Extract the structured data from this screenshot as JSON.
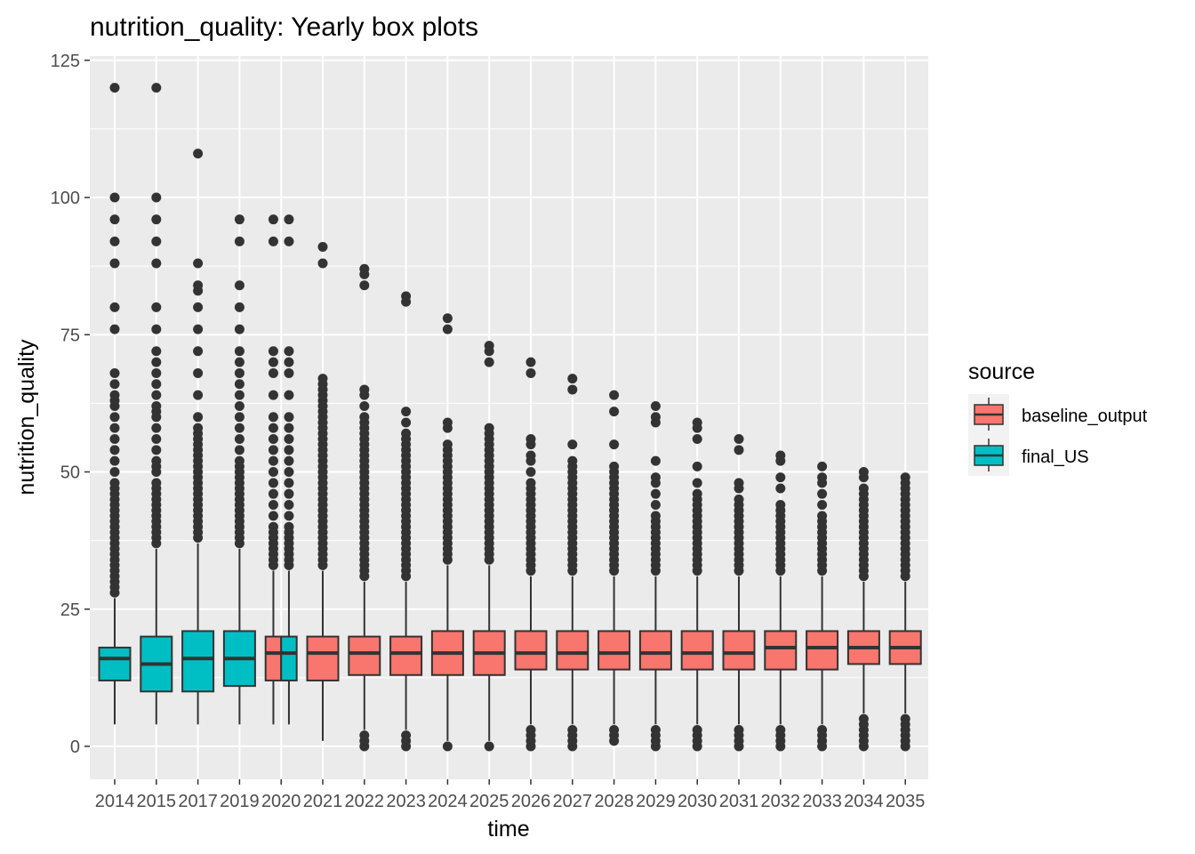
{
  "chart_data": {
    "type": "box",
    "title": "nutrition_quality: Yearly box plots",
    "xlabel": "time",
    "ylabel": "nutrition_quality",
    "ylim": [
      -5.5,
      127
    ],
    "yticks": [
      0,
      25,
      50,
      75,
      100,
      125
    ],
    "grid": true,
    "legend": {
      "title": "source",
      "position": "right",
      "entries": [
        {
          "name": "baseline_output",
          "color": "#F8766D"
        },
        {
          "name": "final_US",
          "color": "#00BFC4"
        }
      ]
    },
    "colors": {
      "baseline_output": "#F8766D",
      "final_US": "#00BFC4",
      "panel": "#EBEBEB",
      "grid": "#FFFFFF",
      "ink": "#333333"
    },
    "categories": [
      "2014",
      "2015",
      "2017",
      "2019",
      "2020",
      "2021",
      "2022",
      "2023",
      "2024",
      "2025",
      "2026",
      "2027",
      "2028",
      "2029",
      "2030",
      "2031",
      "2032",
      "2033",
      "2034",
      "2035"
    ],
    "boxes": [
      {
        "x": "2014",
        "source": "final_US",
        "whisker_low": 4,
        "q1": 12,
        "median": 16,
        "q3": 18,
        "whisker_high": 27,
        "outliers": [
          28,
          29,
          30,
          31,
          32,
          33,
          34,
          35,
          36,
          37,
          38,
          39,
          40,
          41,
          42,
          43,
          44,
          45,
          46,
          47,
          48,
          50,
          52,
          54,
          56,
          58,
          60,
          62,
          63,
          64,
          66,
          68,
          76,
          80,
          88,
          92,
          96,
          100,
          120
        ]
      },
      {
        "x": "2015",
        "source": "final_US",
        "whisker_low": 4,
        "q1": 10,
        "median": 15,
        "q3": 20,
        "whisker_high": 36,
        "outliers": [
          37,
          38,
          39,
          40,
          41,
          42,
          43,
          44,
          45,
          46,
          47,
          48,
          50,
          51,
          52,
          54,
          56,
          58,
          60,
          61,
          62,
          64,
          66,
          68,
          70,
          72,
          76,
          80,
          88,
          92,
          96,
          100,
          120
        ]
      },
      {
        "x": "2017",
        "source": "final_US",
        "whisker_low": 4,
        "q1": 10,
        "median": 16,
        "q3": 21,
        "whisker_high": 37,
        "outliers": [
          38,
          39,
          40,
          41,
          42,
          43,
          44,
          45,
          46,
          47,
          48,
          49,
          50,
          51,
          52,
          53,
          54,
          55,
          56,
          57,
          58,
          60,
          64,
          68,
          72,
          76,
          80,
          83,
          84,
          88,
          108
        ]
      },
      {
        "x": "2019",
        "source": "final_US",
        "whisker_low": 4,
        "q1": 11,
        "median": 16,
        "q3": 21,
        "whisker_high": 36,
        "outliers": [
          37,
          38,
          39,
          40,
          41,
          42,
          43,
          44,
          45,
          46,
          47,
          48,
          49,
          50,
          51,
          52,
          54,
          56,
          58,
          60,
          62,
          64,
          66,
          68,
          70,
          72,
          76,
          80,
          84,
          92,
          96
        ]
      },
      {
        "x": "2020",
        "source": "baseline_output",
        "whisker_low": 4,
        "q1": 12,
        "median": 17,
        "q3": 20,
        "whisker_high": 32,
        "outliers": [
          33,
          34,
          35,
          36,
          37,
          38,
          39,
          40,
          42,
          44,
          46,
          48,
          50,
          52,
          54,
          56,
          58,
          60,
          64,
          68,
          70,
          72,
          92,
          96
        ]
      },
      {
        "x": "2020",
        "source": "final_US",
        "whisker_low": 4,
        "q1": 12,
        "median": 17,
        "q3": 20,
        "whisker_high": 32,
        "outliers": [
          33,
          34,
          35,
          36,
          37,
          38,
          39,
          40,
          42,
          44,
          46,
          48,
          50,
          52,
          54,
          56,
          58,
          60,
          64,
          68,
          70,
          72,
          92,
          96
        ]
      },
      {
        "x": "2021",
        "source": "baseline_output",
        "whisker_low": 1,
        "q1": 12,
        "median": 17,
        "q3": 20,
        "whisker_high": 32,
        "outliers": [
          33,
          34,
          35,
          36,
          37,
          38,
          39,
          40,
          41,
          42,
          43,
          44,
          45,
          46,
          47,
          48,
          49,
          50,
          51,
          52,
          53,
          54,
          55,
          56,
          57,
          58,
          59,
          60,
          61,
          62,
          63,
          64,
          65,
          66,
          67,
          88,
          91
        ]
      },
      {
        "x": "2022",
        "source": "baseline_output",
        "whisker_low": 3,
        "q1": 13,
        "median": 17,
        "q3": 20,
        "whisker_high": 30,
        "outliers": [
          0,
          1,
          2,
          31,
          32,
          33,
          34,
          35,
          36,
          37,
          38,
          39,
          40,
          41,
          42,
          43,
          44,
          45,
          46,
          47,
          48,
          49,
          50,
          51,
          52,
          53,
          54,
          55,
          56,
          57,
          58,
          59,
          60,
          62,
          64,
          65,
          84,
          86,
          87
        ]
      },
      {
        "x": "2023",
        "source": "baseline_output",
        "whisker_low": 3,
        "q1": 13,
        "median": 17,
        "q3": 20,
        "whisker_high": 30,
        "outliers": [
          0,
          1,
          2,
          31,
          32,
          33,
          34,
          35,
          36,
          37,
          38,
          39,
          40,
          41,
          42,
          43,
          44,
          45,
          46,
          47,
          48,
          49,
          50,
          51,
          52,
          53,
          54,
          55,
          56,
          57,
          59,
          61,
          81,
          82
        ]
      },
      {
        "x": "2024",
        "source": "baseline_output",
        "whisker_low": 1,
        "q1": 13,
        "median": 17,
        "q3": 21,
        "whisker_high": 33,
        "outliers": [
          0,
          34,
          35,
          36,
          37,
          38,
          39,
          40,
          41,
          42,
          43,
          44,
          45,
          46,
          47,
          48,
          49,
          50,
          51,
          52,
          53,
          54,
          55,
          58,
          59,
          76,
          78
        ]
      },
      {
        "x": "2025",
        "source": "baseline_output",
        "whisker_low": 1,
        "q1": 13,
        "median": 17,
        "q3": 21,
        "whisker_high": 33,
        "outliers": [
          0,
          34,
          35,
          36,
          37,
          38,
          39,
          40,
          41,
          42,
          43,
          44,
          45,
          46,
          47,
          48,
          49,
          50,
          51,
          52,
          53,
          54,
          55,
          56,
          57,
          58,
          70,
          72,
          73
        ]
      },
      {
        "x": "2026",
        "source": "baseline_output",
        "whisker_low": 4,
        "q1": 14,
        "median": 17,
        "q3": 21,
        "whisker_high": 31,
        "outliers": [
          0,
          1,
          2,
          3,
          32,
          33,
          34,
          35,
          36,
          37,
          38,
          39,
          40,
          41,
          42,
          43,
          44,
          45,
          46,
          47,
          48,
          50,
          52,
          53,
          55,
          56,
          68,
          70
        ]
      },
      {
        "x": "2027",
        "source": "baseline_output",
        "whisker_low": 4,
        "q1": 14,
        "median": 17,
        "q3": 21,
        "whisker_high": 31,
        "outliers": [
          0,
          1,
          2,
          3,
          32,
          33,
          34,
          35,
          36,
          37,
          38,
          39,
          40,
          41,
          42,
          43,
          44,
          45,
          46,
          47,
          48,
          49,
          50,
          51,
          52,
          55,
          65,
          67
        ]
      },
      {
        "x": "2028",
        "source": "baseline_output",
        "whisker_low": 4,
        "q1": 14,
        "median": 17,
        "q3": 21,
        "whisker_high": 31,
        "outliers": [
          1,
          2,
          3,
          32,
          33,
          34,
          35,
          36,
          37,
          38,
          39,
          40,
          41,
          42,
          43,
          44,
          45,
          46,
          47,
          48,
          49,
          50,
          51,
          55,
          61,
          64
        ]
      },
      {
        "x": "2029",
        "source": "baseline_output",
        "whisker_low": 4,
        "q1": 14,
        "median": 17,
        "q3": 21,
        "whisker_high": 31,
        "outliers": [
          0,
          1,
          2,
          3,
          32,
          33,
          34,
          35,
          36,
          37,
          38,
          39,
          40,
          41,
          42,
          44,
          46,
          48,
          49,
          52,
          59,
          60,
          62
        ]
      },
      {
        "x": "2030",
        "source": "baseline_output",
        "whisker_low": 4,
        "q1": 14,
        "median": 17,
        "q3": 21,
        "whisker_high": 31,
        "outliers": [
          0,
          1,
          2,
          3,
          32,
          33,
          34,
          35,
          36,
          37,
          38,
          39,
          40,
          41,
          42,
          43,
          44,
          45,
          46,
          48,
          51,
          56,
          58,
          59
        ]
      },
      {
        "x": "2031",
        "source": "baseline_output",
        "whisker_low": 4,
        "q1": 14,
        "median": 17,
        "q3": 21,
        "whisker_high": 31,
        "outliers": [
          0,
          1,
          2,
          3,
          32,
          33,
          34,
          35,
          36,
          37,
          38,
          39,
          40,
          41,
          42,
          43,
          44,
          45,
          47,
          48,
          54,
          56
        ]
      },
      {
        "x": "2032",
        "source": "baseline_output",
        "whisker_low": 4,
        "q1": 14,
        "median": 18,
        "q3": 21,
        "whisker_high": 31,
        "outliers": [
          0,
          1,
          2,
          3,
          32,
          33,
          34,
          35,
          36,
          37,
          38,
          39,
          40,
          41,
          42,
          43,
          44,
          47,
          49,
          52,
          53
        ]
      },
      {
        "x": "2033",
        "source": "baseline_output",
        "whisker_low": 4,
        "q1": 14,
        "median": 18,
        "q3": 21,
        "whisker_high": 31,
        "outliers": [
          0,
          1,
          2,
          3,
          32,
          33,
          34,
          35,
          36,
          37,
          38,
          39,
          40,
          41,
          42,
          44,
          46,
          48,
          49,
          51
        ]
      },
      {
        "x": "2034",
        "source": "baseline_output",
        "whisker_low": 6,
        "q1": 15,
        "median": 18,
        "q3": 21,
        "whisker_high": 30,
        "outliers": [
          0,
          1,
          2,
          3,
          4,
          5,
          31,
          32,
          33,
          34,
          35,
          36,
          37,
          38,
          39,
          40,
          41,
          42,
          43,
          44,
          45,
          46,
          47,
          49,
          50
        ]
      },
      {
        "x": "2035",
        "source": "baseline_output",
        "whisker_low": 6,
        "q1": 15,
        "median": 18,
        "q3": 21,
        "whisker_high": 30,
        "outliers": [
          0,
          1,
          2,
          3,
          4,
          5,
          31,
          32,
          33,
          34,
          35,
          36,
          37,
          38,
          39,
          40,
          41,
          42,
          43,
          44,
          45,
          46,
          47,
          48,
          49
        ]
      }
    ]
  }
}
